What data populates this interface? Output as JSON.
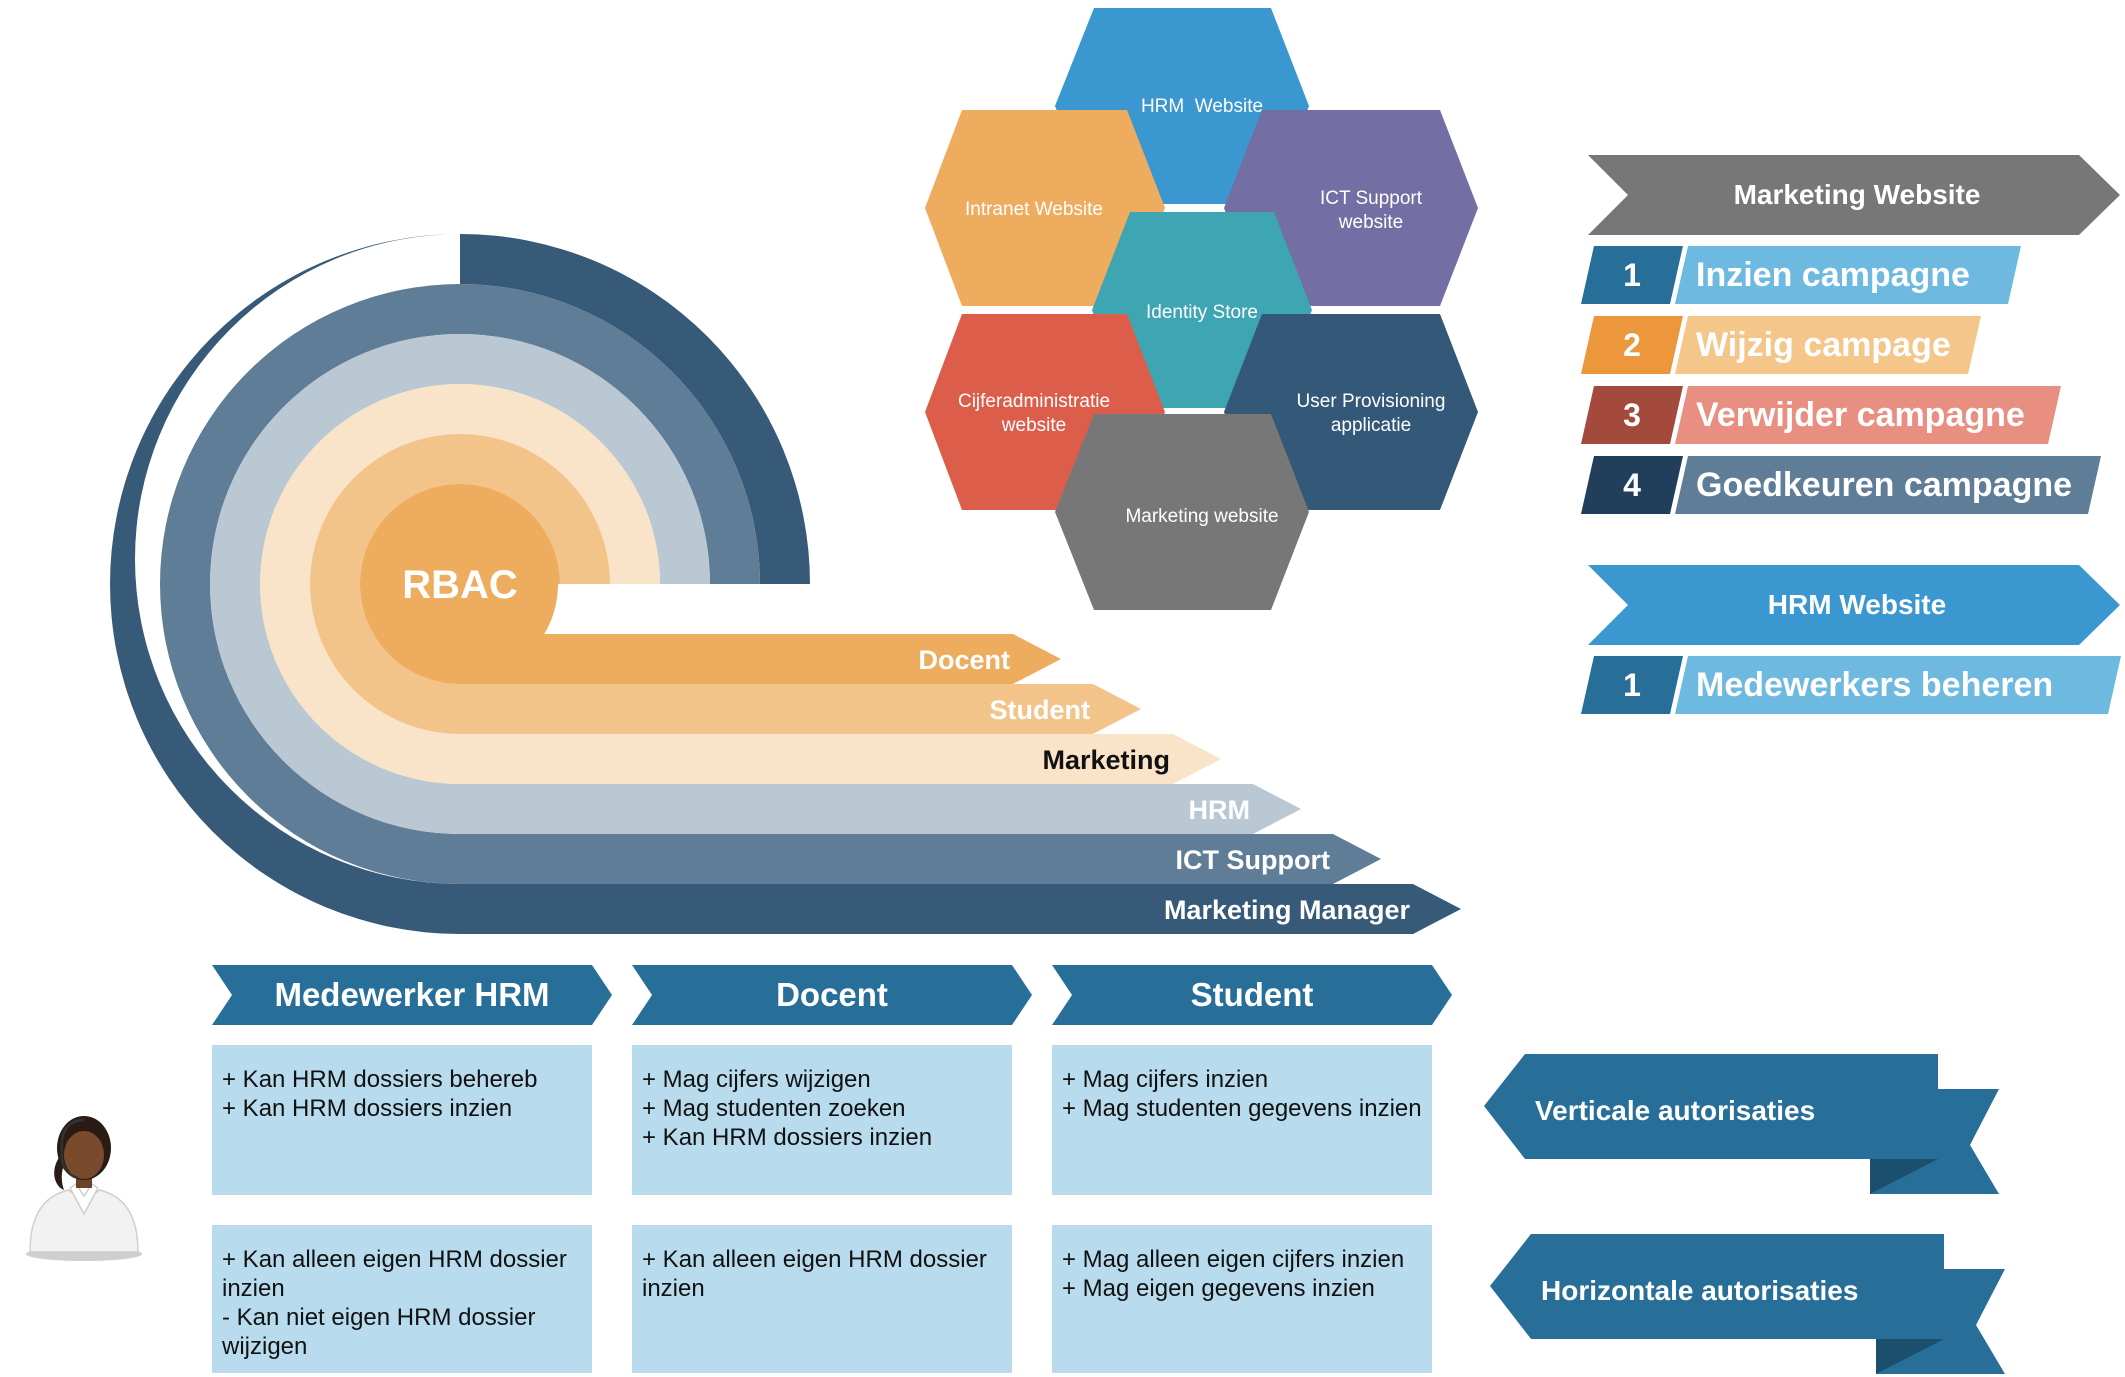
{
  "rbac": {
    "center_label": "RBAC",
    "roles": [
      {
        "label": "Docent",
        "color": "#eeac5f",
        "text_color": "#ffffff"
      },
      {
        "label": "Student",
        "color": "#f3c48a",
        "text_color": "#ffffff"
      },
      {
        "label": "Marketing",
        "color": "#f9e4ca",
        "text_color": "#111111"
      },
      {
        "label": "HRM",
        "color": "#bac8d3",
        "text_color": "#ffffff"
      },
      {
        "label": "ICT Support",
        "color": "#5f7d96",
        "text_color": "#ffffff"
      },
      {
        "label": "Marketing Manager",
        "color": "#365a78",
        "text_color": "#ffffff"
      }
    ]
  },
  "hexagons": {
    "hrm": {
      "line1": "HRM  Website",
      "line2": "",
      "color": "#3a97cf"
    },
    "intranet": {
      "line1": "Intranet Website",
      "line2": "",
      "color": "#eeac5f"
    },
    "ict": {
      "line1": "ICT Support",
      "line2": "website",
      "color": "#736ea3"
    },
    "identity": {
      "line1": "Identity Store",
      "line2": "",
      "color": "#3ea5b3"
    },
    "cijfer": {
      "line1": "Cijferadministratie",
      "line2": "website",
      "color": "#dd5d4b"
    },
    "provisioning": {
      "line1": "User Provisioning",
      "line2": "applicatie",
      "color": "#345878"
    },
    "marketing": {
      "line1": "Marketing website",
      "line2": "",
      "color": "#777777"
    }
  },
  "marketing_website": {
    "header": "Marketing Website",
    "header_color": "#777777",
    "items": [
      {
        "num": "1",
        "label": "Inzien campagne",
        "num_color": "#276f98",
        "bar_color": "#6db9e0"
      },
      {
        "num": "2",
        "label": "Wijzig campage",
        "num_color": "#ec973c",
        "bar_color": "#f4c689"
      },
      {
        "num": "3",
        "label": "Verwijder campagne",
        "num_color": "#a34a3c",
        "bar_color": "#e88f82"
      },
      {
        "num": "4",
        "label": "Goedkeuren campagne",
        "num_color": "#213f5a",
        "bar_color": "#5f7d96"
      }
    ]
  },
  "hrm_website": {
    "header": "HRM Website",
    "header_color": "#3a97cf",
    "items": [
      {
        "num": "1",
        "label": "Medewerkers beheren",
        "num_color": "#276f98",
        "bar_color": "#6db9e0"
      }
    ]
  },
  "columns": [
    {
      "header": "Medewerker HRM",
      "vertical": [
        "+ Kan HRM dossiers behereb",
        "+ Kan HRM dossiers inzien"
      ],
      "horizontal": [
        "+ Kan alleen eigen HRM dossier",
        "inzien",
        "- Kan niet eigen HRM dossier",
        "wijzigen"
      ]
    },
    {
      "header": "Docent",
      "vertical": [
        "+ Mag cijfers wijzigen",
        "+ Mag studenten zoeken",
        "+ Kan HRM dossiers inzien"
      ],
      "horizontal": [
        "+ Kan alleen eigen HRM dossier",
        "inzien"
      ]
    },
    {
      "header": "Student",
      "vertical": [
        "+ Mag cijfers inzien",
        "+ Mag studenten gegevens inzien"
      ],
      "horizontal": [
        "+ Mag alleen eigen cijfers inzien",
        "+ Mag eigen gegevens inzien"
      ]
    }
  ],
  "banners": {
    "vertical": "Verticale autorisaties",
    "horizontal": "Horizontale autorisaties"
  },
  "colors": {
    "column_header": "#276f98",
    "box_fill": "#b8dcee",
    "banner_main": "#276f98",
    "banner_dark": "#1b4f6e"
  }
}
